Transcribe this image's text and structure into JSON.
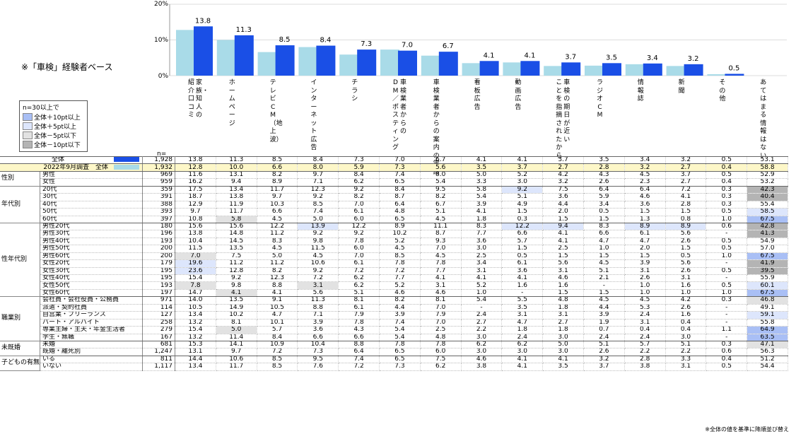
{
  "note": "※「車検」経験者ベース",
  "legend": {
    "header": "n=30以上で",
    "items": [
      {
        "label": "全体＋10pt以上",
        "color": "#a9bff5"
      },
      {
        "label": "全体＋5pt以上",
        "color": "#dde6fc"
      },
      {
        "label": "全体－5pt以下",
        "color": "#e2e2e2"
      },
      {
        "label": "全体－10pt以下",
        "color": "#b4b4b4"
      }
    ]
  },
  "n_label": "n=",
  "footnote": "※全体の値を基準に降順並び替え",
  "colors": {
    "current": "#1a4fe6",
    "previous": "#a9dbe8",
    "prev_row": "#fdf7c8"
  },
  "chart_data": {
    "type": "bar",
    "ylim": [
      0,
      20
    ],
    "yticks": [
      "0%",
      "10%",
      "20%"
    ],
    "categories": [
      "紹介・家族・知人の口コミ",
      "ホームページ",
      "テレビCM（地上波）",
      "インターネット広告",
      "チラシ",
      "車検業者からのDM／ポスティング",
      "車検業者からの案内の電話",
      "看板広告",
      "動画広告",
      "車検の期日が近いことを指摘されたから",
      "ラジオCM",
      "情報誌",
      "新聞",
      "その他"
    ],
    "category_labels": [
      [
        "紹介・口コミ",
        "家族・知人の"
      ],
      [
        "ホームページ"
      ],
      [
        "テレビCM（地上波）"
      ],
      [
        "インターネット広告"
      ],
      [
        "チラシ"
      ],
      [
        "DM／ポスティング",
        "車検業者からの"
      ],
      [
        "車検業者からの案内の電話"
      ],
      [
        "看板広告"
      ],
      [
        "動画広告"
      ],
      [
        "ことを指摘されたから",
        "車検の期日が近い"
      ],
      [
        "ラジオCM"
      ],
      [
        "情報誌"
      ],
      [
        "新聞"
      ],
      [
        "その他"
      ],
      [
        "あてはまる情報はない"
      ]
    ],
    "series": [
      {
        "name": "2022年9月調査 全体",
        "values": [
          12.8,
          10.0,
          6.6,
          8.0,
          5.9,
          7.3,
          5.6,
          3.5,
          3.7,
          2.7,
          2.8,
          3.2,
          2.7,
          0.4
        ]
      },
      {
        "name": "全体",
        "values": [
          13.8,
          11.3,
          8.5,
          8.4,
          7.3,
          7.0,
          6.7,
          4.1,
          4.1,
          3.7,
          3.5,
          3.4,
          3.2,
          0.5
        ]
      }
    ],
    "data_labels": [
      "13.8",
      "11.3",
      "8.5",
      "8.4",
      "7.3",
      "7.0",
      "6.7",
      "4.1",
      "4.1",
      "3.7",
      "3.5",
      "3.4",
      "3.2",
      "0.5"
    ]
  },
  "table": {
    "rows": [
      {
        "group": "",
        "label": "全体",
        "n": "1,928",
        "v": [
          "13.8",
          "11.3",
          "8.5",
          "8.4",
          "7.3",
          "7.0",
          "6.7",
          "4.1",
          "4.1",
          "3.7",
          "3.5",
          "3.4",
          "3.2",
          "0.5",
          "53.1"
        ],
        "h": []
      },
      {
        "group": "",
        "label": "2022年9月調査　全体",
        "n": "1,932",
        "v": [
          "12.8",
          "10.0",
          "6.6",
          "8.0",
          "5.9",
          "7.3",
          "5.6",
          "3.5",
          "3.7",
          "2.7",
          "2.8",
          "3.2",
          "2.7",
          "0.4",
          "58.8"
        ],
        "h": []
      },
      {
        "group": "性別",
        "label": "男性",
        "n": "969",
        "v": [
          "11.6",
          "13.1",
          "8.2",
          "9.7",
          "8.4",
          "7.4",
          "8.0",
          "5.0",
          "5.2",
          "4.2",
          "4.3",
          "4.5",
          "3.7",
          "0.5",
          "52.9"
        ],
        "h": []
      },
      {
        "group": "",
        "label": "女性",
        "n": "959",
        "v": [
          "16.2",
          "9.4",
          "8.9",
          "7.1",
          "6.2",
          "6.5",
          "5.4",
          "3.3",
          "3.0",
          "3.2",
          "2.6",
          "2.3",
          "2.7",
          "0.4",
          "53.2"
        ],
        "h": []
      },
      {
        "group": "年代別",
        "label": "20代",
        "n": "359",
        "v": [
          "17.5",
          "13.4",
          "11.7",
          "12.3",
          "9.2",
          "8.4",
          "9.5",
          "5.8",
          "9.2",
          "7.5",
          "6.4",
          "6.4",
          "7.2",
          "0.3",
          "42.3"
        ],
        "h": [
          "",
          "",
          "",
          "",
          "",
          "",
          "",
          "",
          "p5",
          "",
          "",
          "",
          "",
          "",
          "m10"
        ]
      },
      {
        "group": "",
        "label": "30代",
        "n": "391",
        "v": [
          "18.7",
          "13.8",
          "9.7",
          "9.2",
          "8.2",
          "8.7",
          "8.2",
          "5.4",
          "5.1",
          "3.6",
          "5.9",
          "4.6",
          "4.1",
          "0.3",
          "40.4"
        ],
        "h": [
          "",
          "",
          "",
          "",
          "",
          "",
          "",
          "",
          "",
          "",
          "",
          "",
          "",
          "",
          "m10"
        ]
      },
      {
        "group": "",
        "label": "40代",
        "n": "388",
        "v": [
          "12.9",
          "11.9",
          "10.3",
          "8.5",
          "7.0",
          "6.4",
          "6.7",
          "3.9",
          "4.9",
          "4.4",
          "3.4",
          "3.6",
          "2.8",
          "0.3",
          "55.4"
        ],
        "h": []
      },
      {
        "group": "",
        "label": "50代",
        "n": "393",
        "v": [
          "9.7",
          "11.7",
          "6.6",
          "7.4",
          "6.1",
          "4.8",
          "5.1",
          "4.1",
          "1.5",
          "2.0",
          "0.5",
          "1.5",
          "1.5",
          "0.5",
          "58.5"
        ],
        "h": [
          "",
          "",
          "",
          "",
          "",
          "",
          "",
          "",
          "",
          "",
          "",
          "",
          "",
          "",
          "p5"
        ]
      },
      {
        "group": "",
        "label": "60代",
        "n": "397",
        "v": [
          "10.8",
          "5.8",
          "4.5",
          "5.0",
          "6.0",
          "6.5",
          "4.5",
          "1.8",
          "0.3",
          "1.5",
          "1.5",
          "1.3",
          "0.8",
          "1.0",
          "67.5"
        ],
        "h": [
          "",
          "m5",
          "",
          "",
          "",
          "",
          "",
          "",
          "",
          "",
          "",
          "",
          "",
          "",
          "p10"
        ]
      },
      {
        "group": "性年代別",
        "label": "男性20代",
        "n": "180",
        "v": [
          "15.6",
          "15.6",
          "12.2",
          "13.9",
          "12.2",
          "8.9",
          "11.1",
          "8.3",
          "12.2",
          "9.4",
          "8.3",
          "8.9",
          "8.9",
          "0.6",
          "42.8"
        ],
        "h": [
          "",
          "",
          "",
          "p5",
          "",
          "",
          "",
          "",
          "p5",
          "p5",
          "",
          "p5",
          "p5",
          "",
          "m10"
        ]
      },
      {
        "group": "",
        "label": "男性30代",
        "n": "196",
        "v": [
          "13.8",
          "14.8",
          "11.2",
          "9.2",
          "9.2",
          "10.2",
          "8.7",
          "7.7",
          "6.6",
          "4.1",
          "6.6",
          "6.1",
          "5.6",
          "-",
          "41.3"
        ],
        "h": [
          "",
          "",
          "",
          "",
          "",
          "",
          "",
          "",
          "",
          "",
          "",
          "",
          "",
          "",
          "m10"
        ]
      },
      {
        "group": "",
        "label": "男性40代",
        "n": "193",
        "v": [
          "10.4",
          "14.5",
          "8.3",
          "9.8",
          "7.8",
          "5.2",
          "9.3",
          "3.6",
          "5.7",
          "4.1",
          "4.7",
          "4.7",
          "2.6",
          "0.5",
          "54.9"
        ],
        "h": []
      },
      {
        "group": "",
        "label": "男性50代",
        "n": "200",
        "v": [
          "11.5",
          "13.5",
          "4.5",
          "11.5",
          "6.0",
          "4.5",
          "7.0",
          "3.0",
          "1.5",
          "2.5",
          "1.0",
          "2.0",
          "1.5",
          "0.5",
          "57.0"
        ],
        "h": []
      },
      {
        "group": "",
        "label": "男性60代",
        "n": "200",
        "v": [
          "7.0",
          "7.5",
          "5.0",
          "4.5",
          "7.0",
          "8.5",
          "4.5",
          "2.5",
          "0.5",
          "1.5",
          "1.5",
          "1.5",
          "0.5",
          "1.0",
          "67.5"
        ],
        "h": [
          "m5",
          "",
          "",
          "",
          "",
          "",
          "",
          "",
          "",
          "",
          "",
          "",
          "",
          "",
          "p10"
        ]
      },
      {
        "group": "",
        "label": "女性20代",
        "n": "179",
        "v": [
          "19.6",
          "11.2",
          "11.2",
          "10.6",
          "6.1",
          "7.8",
          "7.8",
          "3.4",
          "6.1",
          "5.6",
          "4.5",
          "3.9",
          "5.6",
          "-",
          "41.9"
        ],
        "h": [
          "p5",
          "",
          "",
          "",
          "",
          "",
          "",
          "",
          "",
          "",
          "",
          "",
          "",
          "",
          "m10"
        ]
      },
      {
        "group": "",
        "label": "女性30代",
        "n": "195",
        "v": [
          "23.6",
          "12.8",
          "8.2",
          "9.2",
          "7.2",
          "7.2",
          "7.7",
          "3.1",
          "3.6",
          "3.1",
          "5.1",
          "3.1",
          "2.6",
          "0.5",
          "39.5"
        ],
        "h": [
          "p5",
          "",
          "",
          "",
          "",
          "",
          "",
          "",
          "",
          "",
          "",
          "",
          "",
          "",
          "m10"
        ]
      },
      {
        "group": "",
        "label": "女性40代",
        "n": "195",
        "v": [
          "15.4",
          "9.2",
          "12.3",
          "7.2",
          "6.2",
          "7.7",
          "4.1",
          "4.1",
          "4.1",
          "4.6",
          "2.1",
          "2.6",
          "3.1",
          "-",
          "55.9"
        ],
        "h": []
      },
      {
        "group": "",
        "label": "女性50代",
        "n": "193",
        "v": [
          "7.8",
          "9.8",
          "8.8",
          "3.1",
          "6.2",
          "5.2",
          "3.1",
          "5.2",
          "1.6",
          "1.6",
          "-",
          "1.0",
          "1.6",
          "0.5",
          "60.1"
        ],
        "h": [
          "m5",
          "",
          "",
          "m5",
          "",
          "",
          "",
          "",
          "",
          "",
          "",
          "",
          "",
          "",
          "p5"
        ]
      },
      {
        "group": "",
        "label": "女性60代",
        "n": "197",
        "v": [
          "14.7",
          "4.1",
          "4.1",
          "5.6",
          "5.1",
          "4.6",
          "4.6",
          "1.0",
          "-",
          "1.5",
          "1.5",
          "1.0",
          "1.0",
          "1.0",
          "67.5"
        ],
        "h": [
          "",
          "m5",
          "",
          "",
          "",
          "",
          "",
          "",
          "",
          "",
          "",
          "",
          "",
          "",
          "p10"
        ]
      },
      {
        "group": "職業別",
        "label": "会社員・会社役員・公務員",
        "n": "971",
        "v": [
          "14.0",
          "13.5",
          "9.1",
          "11.3",
          "8.1",
          "8.2",
          "8.1",
          "5.4",
          "5.5",
          "4.8",
          "4.5",
          "4.5",
          "4.2",
          "0.3",
          "46.8"
        ],
        "h": [
          "",
          "",
          "",
          "",
          "",
          "",
          "",
          "",
          "",
          "",
          "",
          "",
          "",
          "",
          "m5"
        ]
      },
      {
        "group": "",
        "label": "派遣・契約社員",
        "n": "114",
        "v": [
          "10.5",
          "14.9",
          "10.5",
          "8.8",
          "6.1",
          "4.4",
          "7.0",
          "-",
          "3.5",
          "1.8",
          "4.4",
          "5.3",
          "2.6",
          "-",
          "49.1"
        ],
        "h": []
      },
      {
        "group": "",
        "label": "自営業・フリーランス",
        "n": "127",
        "v": [
          "13.4",
          "10.2",
          "4.7",
          "7.1",
          "7.9",
          "3.9",
          "7.9",
          "2.4",
          "3.1",
          "3.1",
          "3.9",
          "2.4",
          "1.6",
          "-",
          "59.1"
        ],
        "h": [
          "",
          "",
          "",
          "",
          "",
          "",
          "",
          "",
          "",
          "",
          "",
          "",
          "",
          "",
          "p5"
        ]
      },
      {
        "group": "",
        "label": "パート・アルバイト",
        "n": "258",
        "v": [
          "13.2",
          "8.1",
          "10.1",
          "3.9",
          "7.8",
          "7.4",
          "7.0",
          "2.7",
          "4.7",
          "2.7",
          "1.9",
          "3.1",
          "0.4",
          "-",
          "55.8"
        ],
        "h": []
      },
      {
        "group": "",
        "label": "専業主婦・主夫・年金生活者",
        "n": "279",
        "v": [
          "15.4",
          "5.0",
          "5.7",
          "3.6",
          "4.3",
          "5.4",
          "2.5",
          "2.2",
          "1.8",
          "1.8",
          "0.7",
          "0.4",
          "0.4",
          "1.1",
          "64.9"
        ],
        "h": [
          "",
          "m5",
          "",
          "",
          "",
          "",
          "",
          "",
          "",
          "",
          "",
          "",
          "",
          "",
          "p10"
        ]
      },
      {
        "group": "",
        "label": "学生・無職",
        "n": "167",
        "v": [
          "13.2",
          "11.4",
          "8.4",
          "6.6",
          "6.6",
          "5.4",
          "4.8",
          "3.0",
          "2.4",
          "3.0",
          "2.4",
          "2.4",
          "3.0",
          "-",
          "63.5"
        ],
        "h": [
          "",
          "",
          "",
          "",
          "",
          "",
          "",
          "",
          "",
          "",
          "",
          "",
          "",
          "",
          "p10"
        ]
      },
      {
        "group": "未既婚",
        "label": "未婚",
        "n": "681",
        "v": [
          "15.3",
          "14.1",
          "10.9",
          "10.4",
          "8.8",
          "7.8",
          "7.8",
          "6.2",
          "6.2",
          "5.0",
          "5.1",
          "5.7",
          "5.1",
          "0.3",
          "47.1"
        ],
        "h": [
          "",
          "",
          "",
          "",
          "",
          "",
          "",
          "",
          "",
          "",
          "",
          "",
          "",
          "",
          "m5"
        ]
      },
      {
        "group": "",
        "label": "既婚・離死別",
        "n": "1,247",
        "v": [
          "13.1",
          "9.7",
          "7.2",
          "7.3",
          "6.4",
          "6.5",
          "6.0",
          "3.0",
          "3.0",
          "3.0",
          "2.6",
          "2.2",
          "2.2",
          "0.6",
          "56.3"
        ],
        "h": []
      },
      {
        "group": "子どもの有無",
        "label": "いる",
        "n": "811",
        "v": [
          "14.4",
          "10.6",
          "8.5",
          "9.5",
          "7.4",
          "6.5",
          "7.5",
          "4.6",
          "4.1",
          "4.1",
          "3.2",
          "2.8",
          "3.3",
          "0.4",
          "51.2"
        ],
        "h": []
      },
      {
        "group": "",
        "label": "いない",
        "n": "1,117",
        "v": [
          "13.4",
          "11.7",
          "8.5",
          "7.6",
          "7.2",
          "7.3",
          "6.2",
          "3.8",
          "4.1",
          "3.5",
          "3.7",
          "3.8",
          "3.1",
          "0.5",
          "54.4"
        ],
        "h": []
      }
    ]
  }
}
